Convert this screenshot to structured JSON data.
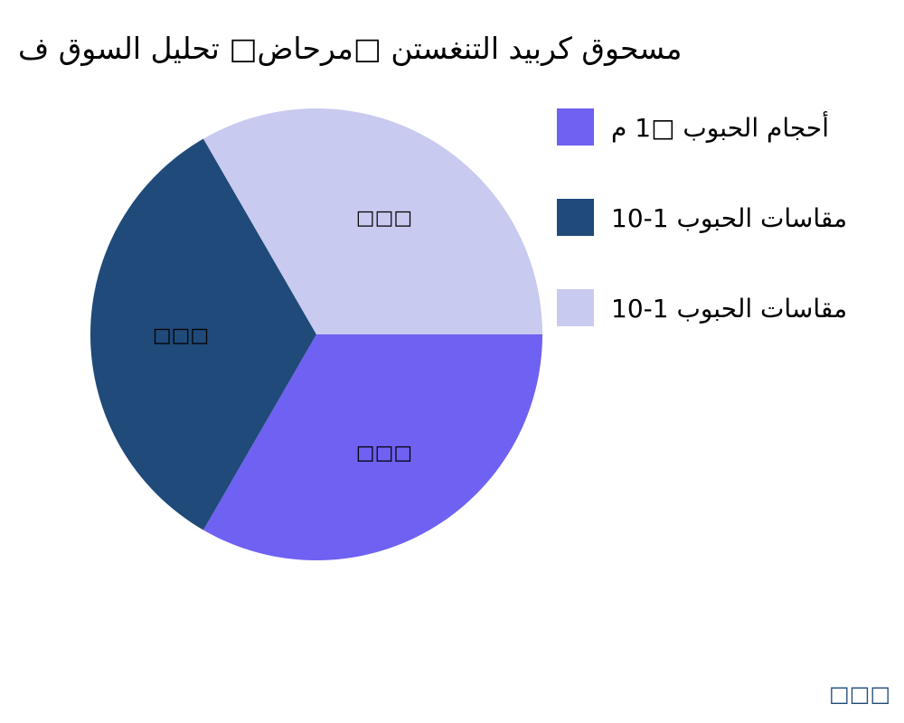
{
  "chart_data": {
    "type": "pie",
    "title": "مسحوق كربيد التنغستن □مرحاض□ تحليل السوق ف",
    "categories": [
      "أحجام الحبوب □1 م",
      "مقاسات الحبوب 1-10",
      "مقاسات الحبوب 1-10"
    ],
    "values": [
      33.33,
      33.33,
      33.34
    ],
    "slice_labels": [
      "□□□",
      "□□□",
      "□□□"
    ],
    "colors": [
      "#6f61f2",
      "#1f4a79",
      "#c9caf0"
    ],
    "start_angle_deg": 0,
    "direction": "counterclockwise-from-purple-bottom",
    "legend_position": "right",
    "watermark": "□□□"
  }
}
